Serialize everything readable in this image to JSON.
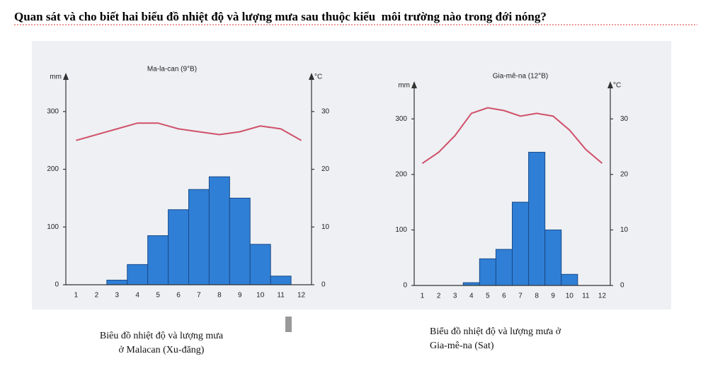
{
  "question": "Quan sát và cho biết hai biểu đồ nhiệt độ và lượng mưa sau thuộc kiểu  môi trường nào trong đới nóng?",
  "chart_data": [
    {
      "type": "climate",
      "title": "Ma-la-can (9°B)",
      "y_label": "mm",
      "y2_label": "°C",
      "categories": [
        "1",
        "2",
        "3",
        "4",
        "5",
        "6",
        "7",
        "8",
        "9",
        "10",
        "11",
        "12"
      ],
      "series": [
        {
          "color": "#2f7fd6",
          "values": [
            0,
            0,
            8,
            35,
            85,
            130,
            165,
            187,
            150,
            70,
            15,
            0
          ]
        },
        {
          "color": "#d0506a",
          "axis": "y2",
          "values": [
            25,
            26,
            27,
            28,
            28,
            27,
            26.5,
            26,
            26.5,
            27.5,
            27,
            25
          ]
        }
      ],
      "ylim": [
        0,
        350
      ],
      "yticks": [
        0,
        100,
        200,
        300
      ],
      "y2lim": [
        0,
        35
      ],
      "y2ticks": [
        0,
        10,
        20,
        30
      ],
      "caption": [
        "Biêu đồ nhiệt độ và lượng mưa",
        "ở Malacan (Xu-đăng)"
      ]
    },
    {
      "type": "climate",
      "title": "Gia-mê-na (12°B)",
      "y_label": "mm",
      "y2_label": "°C",
      "categories": [
        "1",
        "2",
        "3",
        "4",
        "5",
        "6",
        "7",
        "8",
        "9",
        "10",
        "11",
        "12"
      ],
      "series": [
        {
          "color": "#2f7fd6",
          "values": [
            0,
            0,
            0,
            5,
            48,
            65,
            150,
            240,
            100,
            20,
            0,
            0
          ]
        },
        {
          "color": "#d0506a",
          "axis": "y2",
          "values": [
            22,
            24,
            27,
            31,
            32,
            31.5,
            30.5,
            31,
            30.5,
            28,
            24.5,
            22
          ]
        }
      ],
      "ylim": [
        0,
        350
      ],
      "yticks": [
        0,
        100,
        200,
        300
      ],
      "y2lim": [
        0,
        35
      ],
      "y2ticks": [
        0,
        10,
        20,
        30
      ],
      "caption": [
        "Biểu đồ nhiệt độ và lượng mưa ở",
        "Gia-mê-na (Sat)"
      ]
    }
  ]
}
